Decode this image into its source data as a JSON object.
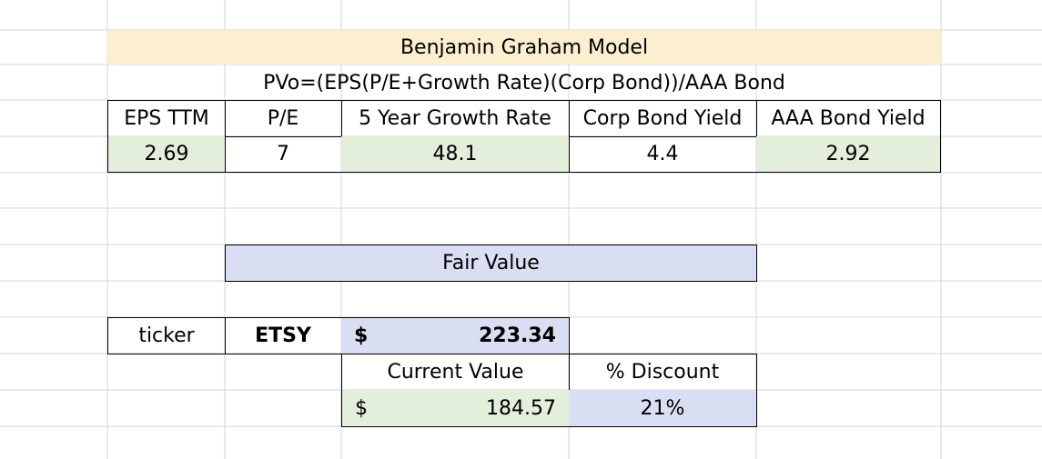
{
  "sheet": {
    "title": "Benjamin Graham Model",
    "formula": "PVo=(EPS(P/E+Growth Rate)(Corp Bond))/AAA Bond",
    "headers": {
      "eps": "EPS TTM",
      "pe": "P/E",
      "growth": "5 Year Growth Rate",
      "corp": "Corp Bond Yield",
      "aaa": "AAA Bond Yield"
    },
    "values": {
      "eps": "2.69",
      "pe": "7",
      "growth": "48.1",
      "corp": "4.4",
      "aaa": "2.92"
    },
    "fair_value_label": "Fair Value",
    "ticker_label": "ticker",
    "ticker": "ETSY",
    "fair_value": {
      "currency": "$",
      "amount": "223.34"
    },
    "current_value_label": "Current Value",
    "discount_label": "% Discount",
    "current_value": {
      "currency": "$",
      "amount": "184.57"
    },
    "discount": "21%"
  },
  "colors": {
    "title_fill": "#fcefcf",
    "input_fill": "#e3efda",
    "output_fill": "#d9def2",
    "gridline": "#d4d4d4"
  }
}
